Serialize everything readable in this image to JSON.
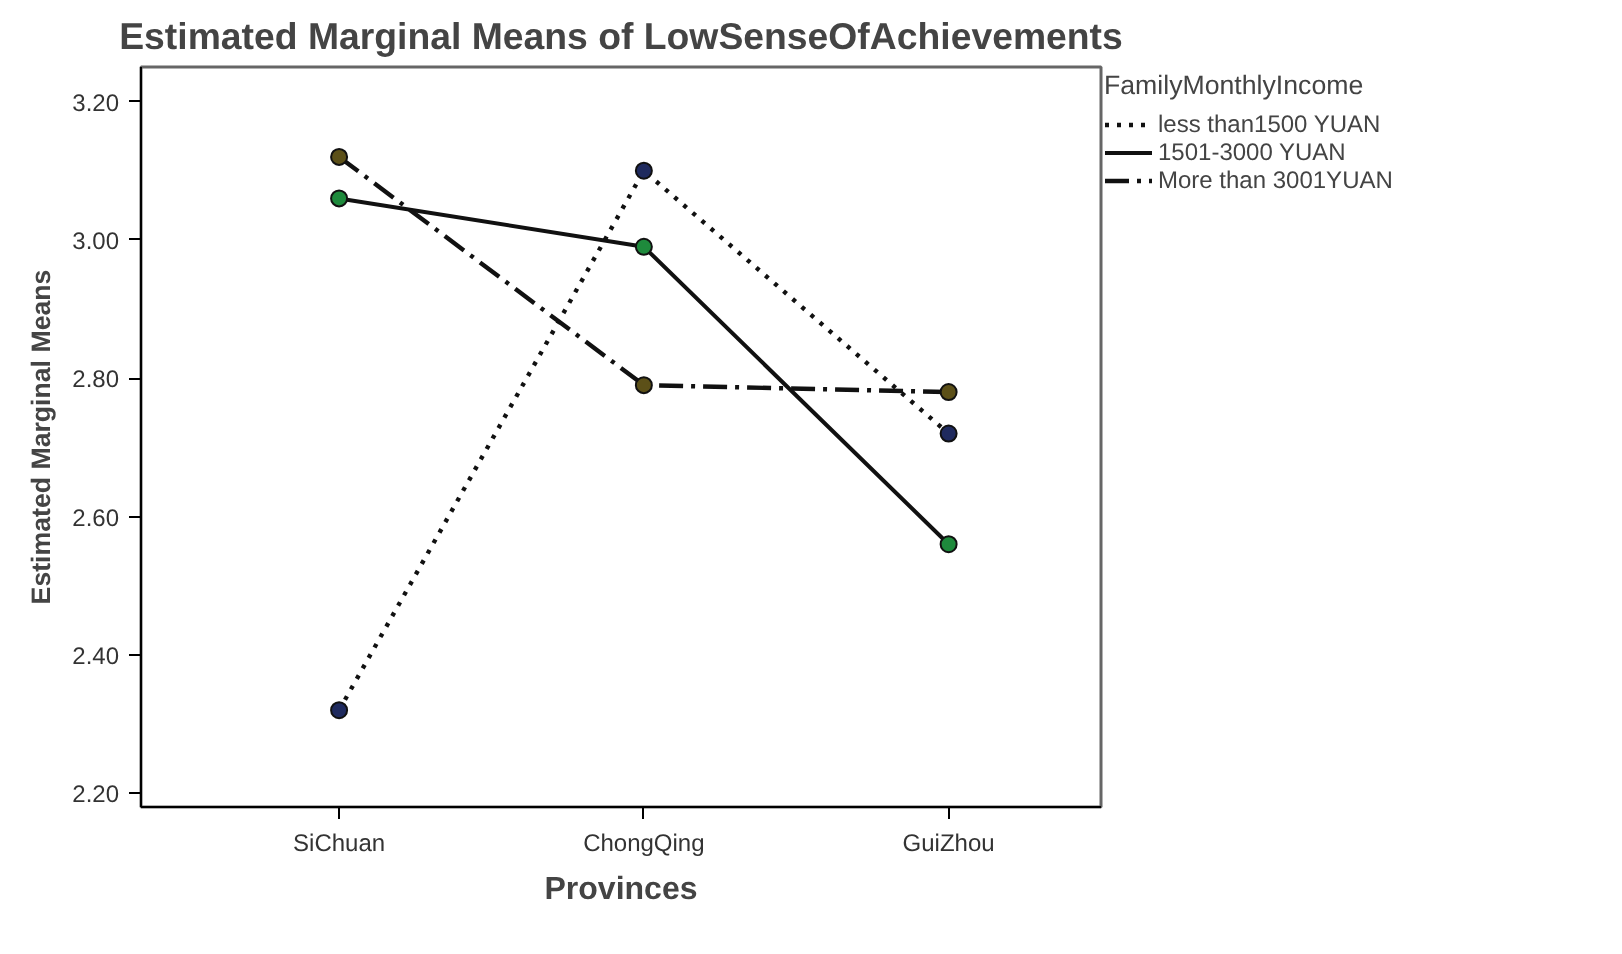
{
  "chart_data": {
    "type": "line",
    "title": "Estimated Marginal Means of LowSenseOfAchievements",
    "xlabel": "Provinces",
    "ylabel": "Estimated Marginal Means",
    "legend_title": "FamilyMonthlyIncome",
    "categories": [
      "SiChuan",
      "ChongQing",
      "GuiZhou"
    ],
    "series": [
      {
        "name": "less than1500 YUAN",
        "color": "#1f2a5e",
        "line_style": "dotted",
        "values": [
          2.32,
          3.1,
          2.72
        ]
      },
      {
        "name": "1501-3000 YUAN",
        "color": "#1e8a3c",
        "line_style": "solid",
        "values": [
          3.06,
          2.99,
          2.56
        ]
      },
      {
        "name": "More than 3001YUAN",
        "color": "#5c5018",
        "line_style": "dashed",
        "values": [
          3.12,
          2.79,
          2.78
        ]
      }
    ],
    "ylim": [
      2.18,
      3.25
    ],
    "yticks": [
      {
        "value": 2.2,
        "label": "2.20"
      },
      {
        "value": 2.4,
        "label": "2.40"
      },
      {
        "value": 2.6,
        "label": "2.60"
      },
      {
        "value": 2.8,
        "label": "2.80"
      },
      {
        "value": 3.0,
        "label": "3.00"
      },
      {
        "value": 3.2,
        "label": "3.20"
      }
    ],
    "marker": "circle",
    "legend": "top right",
    "grid": false
  }
}
